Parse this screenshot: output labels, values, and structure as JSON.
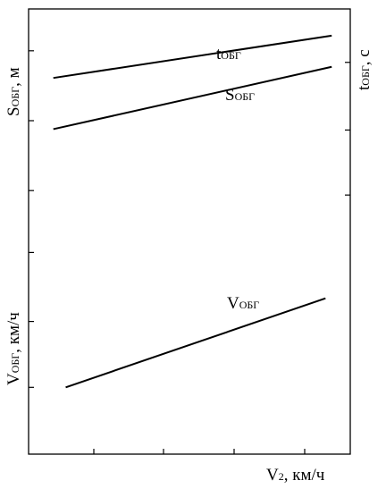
{
  "chart_data": {
    "type": "line",
    "title": "",
    "xlabel": {
      "main": "V",
      "sub": "2",
      "unit": ", км/ч"
    },
    "y_left_upper": {
      "main": "S",
      "sub": "ОБГ",
      "unit": ", м"
    },
    "y_left_lower": {
      "main": "V",
      "sub": "ОБГ",
      "unit": ", км/ч"
    },
    "y_right": {
      "main": "t",
      "sub": "ОБГ",
      "unit": ", с"
    },
    "x_ticks": 5,
    "grid": false,
    "series": [
      {
        "name": {
          "main": "t",
          "sub": "ОБГ"
        },
        "x": [
          0.08,
          0.98
        ],
        "y": [
          0.845,
          0.94
        ]
      },
      {
        "name": {
          "main": "S",
          "sub": "ОБГ"
        },
        "x": [
          0.08,
          0.98
        ],
        "y": [
          0.73,
          0.87
        ]
      },
      {
        "name": {
          "main": "V",
          "sub": "ОБГ"
        },
        "x": [
          0.12,
          0.96
        ],
        "y": [
          0.15,
          0.35
        ]
      }
    ]
  }
}
